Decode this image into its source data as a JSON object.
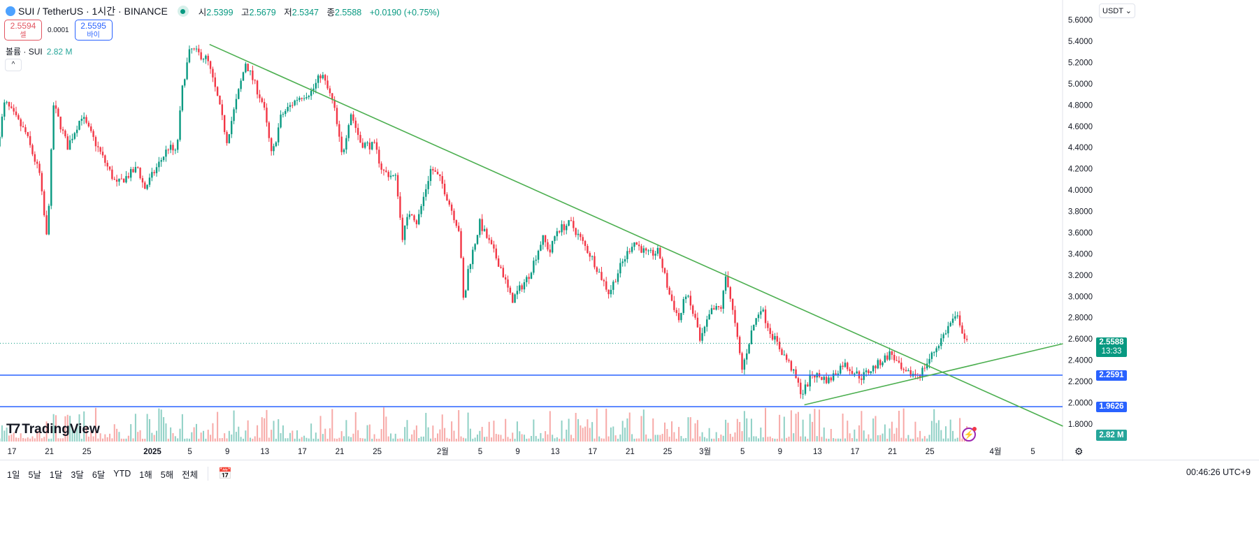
{
  "header": {
    "symbol": "SUI / TetherUS · 1시간 · BINANCE",
    "open_label": "시",
    "open": "2.5399",
    "high_label": "고",
    "high": "2.5679",
    "low_label": "저",
    "low": "2.5347",
    "close_label": "종",
    "close": "2.5588",
    "change": "+0.0190 (+0.75%)"
  },
  "trade": {
    "sell_price": "2.5594",
    "sell_label": "셀",
    "spread": "0.0001",
    "buy_price": "2.5595",
    "buy_label": "바이"
  },
  "volume": {
    "label": "볼륨 · SUI",
    "value": "2.82 M",
    "badge": "2.82 M"
  },
  "currency": "USDT ⌄",
  "watermark": "TradingView",
  "price_badge": {
    "price": "2.5588",
    "countdown": "13:33"
  },
  "ranges": [
    "1일",
    "5날",
    "1달",
    "3달",
    "6달",
    "YTD",
    "1해",
    "5해",
    "전체"
  ],
  "clock": "00:46:26 UTC+9",
  "colors": {
    "up": "#089981",
    "down": "#f23645",
    "trend": "#4caf50",
    "level": "#2962ff"
  },
  "chart_data": {
    "type": "candlestick",
    "title": "SUI / TetherUS 1h",
    "y_ticks": [
      "5.6000",
      "5.4000",
      "5.2000",
      "5.0000",
      "4.8000",
      "4.6000",
      "4.4000",
      "4.2000",
      "4.0000",
      "3.8000",
      "3.6000",
      "3.4000",
      "3.2000",
      "3.0000",
      "2.8000",
      "2.6000",
      "2.4000",
      "2.2000",
      "2.0000",
      "1.8000"
    ],
    "ylim": [
      1.8,
      5.4
    ],
    "x_ticks": [
      {
        "label": "17",
        "day": 0
      },
      {
        "label": "21",
        "day": 4
      },
      {
        "label": "25",
        "day": 8
      },
      {
        "label": "2025",
        "day": 15
      },
      {
        "label": "5",
        "day": 19
      },
      {
        "label": "9",
        "day": 23
      },
      {
        "label": "13",
        "day": 27
      },
      {
        "label": "17",
        "day": 31
      },
      {
        "label": "21",
        "day": 35
      },
      {
        "label": "25",
        "day": 39
      },
      {
        "label": "2월",
        "day": 46
      },
      {
        "label": "5",
        "day": 50
      },
      {
        "label": "9",
        "day": 54
      },
      {
        "label": "13",
        "day": 58
      },
      {
        "label": "17",
        "day": 62
      },
      {
        "label": "21",
        "day": 66
      },
      {
        "label": "25",
        "day": 70
      },
      {
        "label": "3월",
        "day": 74
      },
      {
        "label": "5",
        "day": 78
      },
      {
        "label": "9",
        "day": 82
      },
      {
        "label": "13",
        "day": 86
      },
      {
        "label": "17",
        "day": 90
      },
      {
        "label": "21",
        "day": 94
      },
      {
        "label": "25",
        "day": 98
      },
      {
        "label": "4월",
        "day": 105
      },
      {
        "label": "5",
        "day": 109
      }
    ],
    "price_path": [
      [
        -1.3,
        4.41
      ],
      [
        -0.5,
        4.83
      ],
      [
        1.7,
        4.54
      ],
      [
        3.2,
        4.15
      ],
      [
        4.0,
        3.52
      ],
      [
        4.7,
        4.8
      ],
      [
        6.2,
        4.41
      ],
      [
        7.7,
        4.7
      ],
      [
        11.4,
        4.05
      ],
      [
        13.7,
        4.21
      ],
      [
        14.4,
        4.01
      ],
      [
        17.0,
        4.41
      ],
      [
        17.8,
        4.34
      ],
      [
        18.5,
        5.0
      ],
      [
        19.3,
        5.33
      ],
      [
        21.1,
        5.23
      ],
      [
        22.2,
        4.87
      ],
      [
        23.2,
        4.47
      ],
      [
        25.2,
        5.2
      ],
      [
        27.1,
        4.8
      ],
      [
        28.0,
        4.31
      ],
      [
        29.0,
        4.7
      ],
      [
        30.8,
        4.87
      ],
      [
        32.3,
        4.93
      ],
      [
        33.3,
        5.1
      ],
      [
        34.6,
        4.8
      ],
      [
        35.5,
        4.31
      ],
      [
        36.4,
        4.74
      ],
      [
        37.5,
        4.44
      ],
      [
        39.0,
        4.41
      ],
      [
        39.8,
        4.18
      ],
      [
        41.3,
        4.11
      ],
      [
        41.9,
        3.55
      ],
      [
        42.8,
        3.82
      ],
      [
        43.5,
        3.69
      ],
      [
        45.0,
        4.21
      ],
      [
        46.1,
        4.08
      ],
      [
        48.0,
        3.62
      ],
      [
        48.5,
        2.9
      ],
      [
        48.9,
        3.23
      ],
      [
        50.2,
        3.69
      ],
      [
        51.3,
        3.49
      ],
      [
        52.5,
        3.26
      ],
      [
        53.6,
        2.96
      ],
      [
        55.4,
        3.19
      ],
      [
        56.9,
        3.55
      ],
      [
        57.7,
        3.42
      ],
      [
        58.4,
        3.62
      ],
      [
        59.9,
        3.69
      ],
      [
        62.2,
        3.36
      ],
      [
        64.0,
        3.03
      ],
      [
        65.1,
        3.26
      ],
      [
        66.6,
        3.52
      ],
      [
        68.1,
        3.39
      ],
      [
        69.3,
        3.42
      ],
      [
        70.4,
        3.03
      ],
      [
        71.5,
        2.77
      ],
      [
        72.2,
        3.03
      ],
      [
        73.4,
        2.73
      ],
      [
        73.7,
        2.57
      ],
      [
        74.9,
        2.86
      ],
      [
        76.0,
        2.9
      ],
      [
        76.5,
        3.22
      ],
      [
        77.5,
        2.7
      ],
      [
        78.2,
        2.31
      ],
      [
        79.3,
        2.7
      ],
      [
        80.2,
        2.9
      ],
      [
        81.2,
        2.67
      ],
      [
        82.3,
        2.5
      ],
      [
        83.4,
        2.34
      ],
      [
        84.6,
        2.08
      ],
      [
        85.7,
        2.27
      ],
      [
        87.5,
        2.21
      ],
      [
        89.0,
        2.37
      ],
      [
        90.9,
        2.24
      ],
      [
        92.8,
        2.37
      ],
      [
        94.1,
        2.47
      ],
      [
        95.4,
        2.27
      ],
      [
        97.2,
        2.27
      ],
      [
        98.4,
        2.44
      ],
      [
        100.6,
        2.77
      ],
      [
        101.3,
        2.8
      ],
      [
        102.1,
        2.56
      ]
    ],
    "trendlines": [
      {
        "name": "descending",
        "from": [
          21.1,
          5.37
        ],
        "to": [
          112.2,
          1.78
        ]
      },
      {
        "name": "ascending",
        "from": [
          84.6,
          1.98
        ],
        "to": [
          112.2,
          2.555
        ]
      }
    ],
    "horizontal_levels": [
      {
        "price": 2.2591,
        "label": "2.2591"
      },
      {
        "price": 1.9626,
        "label": "1.9626"
      }
    ],
    "last_price": 2.5588
  }
}
